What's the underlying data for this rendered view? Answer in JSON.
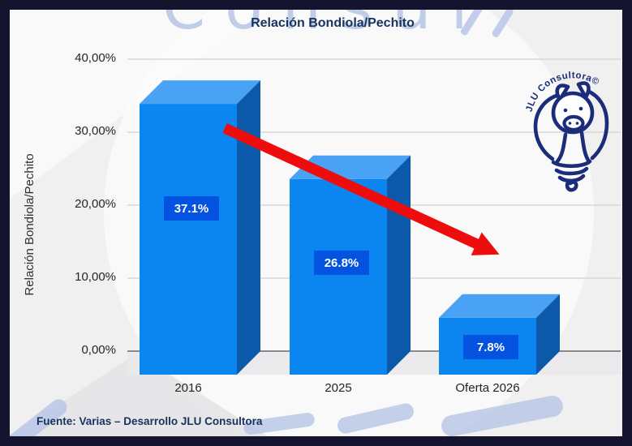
{
  "window": {
    "border_color": "#14142e",
    "background_color": "#f0f0f1"
  },
  "chart_data": {
    "type": "bar",
    "projection": "3d-oblique",
    "title": "Relación Bondiola/Pechito",
    "ylabel": "Relación Bondiola/Pechito",
    "categories": [
      "2016",
      "2025",
      "Oferta 2026"
    ],
    "values": [
      37.1,
      26.8,
      7.8
    ],
    "value_labels": [
      "37.1%",
      "26.8%",
      "7.8%"
    ],
    "yticks": [
      {
        "label": "40,00%",
        "value": 40
      },
      {
        "label": "30,00%",
        "value": 30
      },
      {
        "label": "20,00%",
        "value": 20
      },
      {
        "label": "10,00%",
        "value": 10
      },
      {
        "label": "0,00%",
        "value": 0
      }
    ],
    "ylim": [
      0,
      40
    ],
    "grid": true,
    "legend": "none",
    "annotations": {
      "trend_arrow": {
        "description": "red arrow sloping down from 2016 bar toward Oferta 2026",
        "color": "#ee0d0d"
      }
    },
    "colors": {
      "bar_front": "#0b86f1",
      "bar_top": "#4aa2f4",
      "bar_side": "#0b59a8",
      "label_box": "#0452e0",
      "label_text": "#ffffff",
      "grid": "#d7d7d7",
      "axis_line": "#7c7c7c",
      "floor": "#e9e9eb",
      "tick_text": "#252525",
      "title_text": "#17325e"
    }
  },
  "source_note": "Fuente: Varias – Desarrollo JLU Consultora",
  "logo": {
    "text": "JLU Consultora©",
    "color": "#1b2c7a",
    "icon": "pig-in-lightbulb"
  },
  "watermark": {
    "top_text": "Consul",
    "color": "#b7c6e6"
  }
}
